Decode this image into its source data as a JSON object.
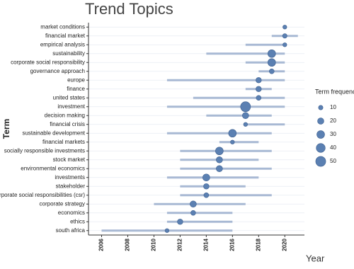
{
  "chart_data": {
    "type": "trend",
    "title": "Trend Topics",
    "x_label": "Year",
    "y_label": "Term",
    "categories": [
      "market conditions",
      "financial market",
      "empirical analysis",
      "sustainability",
      "corporate social responsibility",
      "governance approach",
      "europe",
      "finance",
      "united states",
      "investment",
      "decision making",
      "financial crisis",
      "sustainable development",
      "financial markets",
      "socially responsible investments",
      "stock market",
      "environmental economics",
      "investments",
      "stakeholder",
      "corporate social responsibilities (csr)",
      "corporate strategy",
      "economics",
      "ethics",
      "south africa"
    ],
    "values": [
      2020,
      2020,
      2020,
      2019,
      2019,
      2019,
      2018,
      2018,
      2018,
      2017,
      2017,
      2017,
      2016,
      2016,
      2015,
      2015,
      2015,
      2014,
      2014,
      2014,
      2013,
      2013,
      2012,
      2011
    ],
    "low": [
      2020,
      2019,
      2017,
      2014,
      2017,
      2018,
      2011,
      2017,
      2013,
      2011,
      2014,
      2017,
      2011,
      2015,
      2012,
      2012,
      2012,
      2011,
      2012,
      2012,
      2010,
      2011,
      2011,
      2006
    ],
    "high": [
      2020,
      2021,
      2020,
      2020,
      2020,
      2020,
      2020,
      2019,
      2020,
      2020,
      2019,
      2020,
      2019,
      2018,
      2019,
      2018,
      2019,
      2018,
      2017,
      2019,
      2017,
      2016,
      2016,
      2016
    ],
    "freq": [
      8,
      10,
      8,
      30,
      30,
      12,
      15,
      15,
      12,
      50,
      20,
      8,
      30,
      8,
      30,
      20,
      20,
      25,
      15,
      12,
      20,
      12,
      15,
      8
    ],
    "xlim": [
      2005,
      2021.5
    ],
    "xticks": [
      2006,
      2008,
      2010,
      2012,
      2014,
      2016,
      2018,
      2020
    ],
    "legend_title": "Term frequency",
    "size_legend": [
      10,
      20,
      30,
      40,
      50
    ],
    "dot_color": "#5b80b2",
    "range_color": "#a8b9d4",
    "grid": true
  }
}
